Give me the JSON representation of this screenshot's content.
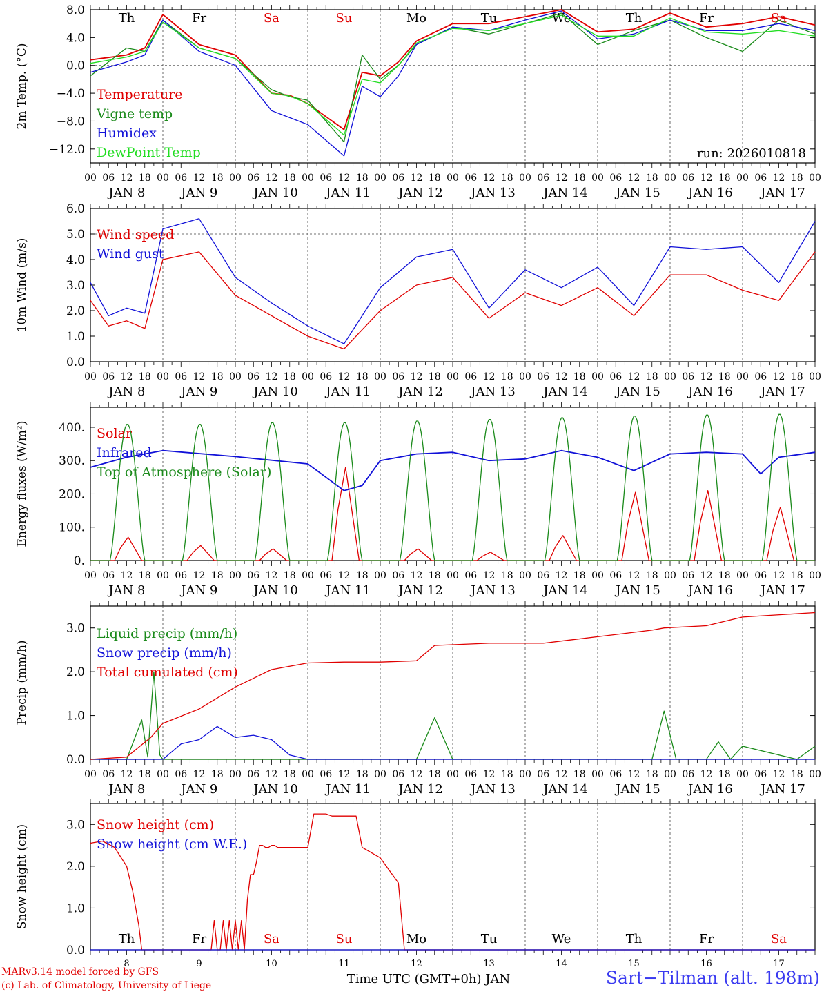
{
  "run_label": "run: 2026010818",
  "station": "Sart−Tilman (alt. 198m)",
  "credits": [
    "MARv3.14 model forced by GFS",
    "(c) Lab. of Climatology, University of Liege"
  ],
  "colors": {
    "red": "#e00000",
    "green": "#1a8a1a",
    "blue": "#1010d8",
    "lightgreen": "#22dd22"
  },
  "time_axis": {
    "hour_ticks": [
      "00",
      "06",
      "12",
      "18"
    ],
    "date_labels": [
      "JAN  8",
      "JAN  9",
      "JAN 10",
      "JAN 11",
      "JAN 12",
      "JAN 13",
      "JAN 14",
      "JAN 15",
      "JAN 16",
      "JAN 17"
    ],
    "bottom_day_numbers": [
      "8",
      "9",
      "10",
      "11",
      "12",
      "13",
      "14",
      "15",
      "16",
      "17"
    ],
    "bottom_xlabel": "Time UTC (GMT+0h) JAN"
  },
  "weekdays": [
    {
      "label": "Th",
      "color": "#000000"
    },
    {
      "label": "Fr",
      "color": "#000000"
    },
    {
      "label": "Sa",
      "color": "#e00000"
    },
    {
      "label": "Su",
      "color": "#e00000"
    },
    {
      "label": "Mo",
      "color": "#000000"
    },
    {
      "label": "Tu",
      "color": "#000000"
    },
    {
      "label": "We",
      "color": "#000000"
    },
    {
      "label": "Th",
      "color": "#000000"
    },
    {
      "label": "Fr",
      "color": "#000000"
    },
    {
      "label": "Sa",
      "color": "#e00000"
    }
  ],
  "chart_data": [
    {
      "type": "line",
      "id": "temp",
      "ylabel": "2m Temp. (°C)",
      "ylim": [
        -14,
        8
      ],
      "yticks": [
        8,
        4,
        0,
        -4,
        -8,
        -12
      ],
      "ytick_labels": [
        "8.0",
        "4.0",
        "0.0",
        "−4.0",
        "−8.0",
        "−12.0"
      ],
      "hline": 0,
      "show_weekdays": true,
      "x_hours": [
        0,
        12,
        18,
        24,
        36,
        48,
        60,
        66,
        72,
        84,
        90,
        96,
        102,
        108,
        120,
        132,
        144,
        156,
        168,
        180,
        192,
        204,
        216,
        228,
        240
      ],
      "series": [
        {
          "name": "Temperature",
          "color": "#e00000",
          "values": [
            0.8,
            1.5,
            2.5,
            7.3,
            3.0,
            1.5,
            -4.0,
            -4.3,
            -5.5,
            -9.2,
            -1.0,
            -1.5,
            0.5,
            3.5,
            6.0,
            6.0,
            7.0,
            8.0,
            4.8,
            5.2,
            7.5,
            5.5,
            6.0,
            7.0,
            5.8
          ]
        },
        {
          "name": "Vigne temp",
          "color": "#1a8a1a",
          "values": [
            -1.5,
            2.5,
            2.0,
            6.5,
            2.5,
            1.0,
            -3.5,
            -4.5,
            -5.0,
            -11.0,
            1.5,
            -2.0,
            0.0,
            3.0,
            5.5,
            4.5,
            6.0,
            7.5,
            3.0,
            5.0,
            6.5,
            4.0,
            2.0,
            6.5,
            4.5
          ]
        },
        {
          "name": "Humidex",
          "color": "#1010d8",
          "values": [
            -1.0,
            0.5,
            1.5,
            6.5,
            2.0,
            0.0,
            -6.5,
            -7.5,
            -8.5,
            -13.0,
            -3.0,
            -4.5,
            -1.5,
            3.0,
            5.5,
            5.0,
            6.5,
            7.8,
            3.8,
            4.5,
            6.5,
            5.0,
            5.0,
            6.0,
            5.0
          ]
        },
        {
          "name": "DewPoint Temp",
          "color": "#22dd22",
          "values": [
            0.3,
            1.2,
            2.0,
            6.2,
            2.5,
            1.0,
            -4.0,
            -4.4,
            -5.5,
            -10.0,
            -2.0,
            -2.5,
            0.0,
            3.2,
            5.3,
            5.0,
            6.0,
            7.2,
            4.2,
            4.2,
            6.8,
            4.8,
            4.5,
            5.0,
            4.2
          ]
        }
      ]
    },
    {
      "type": "line",
      "id": "wind",
      "ylabel": "10m Wind (m/s)",
      "ylim": [
        0,
        6
      ],
      "yticks": [
        6,
        5,
        4,
        3,
        2,
        1,
        0
      ],
      "ytick_labels": [
        "6.0",
        "5.0",
        "4.0",
        "3.0",
        "2.0",
        "1.0",
        "0.0"
      ],
      "hline": 5,
      "show_weekdays": false,
      "x_hours": [
        0,
        6,
        12,
        18,
        24,
        36,
        48,
        60,
        72,
        84,
        96,
        108,
        120,
        132,
        144,
        156,
        168,
        180,
        192,
        204,
        216,
        228,
        240
      ],
      "series": [
        {
          "name": "Wind speed",
          "color": "#e00000",
          "values": [
            2.4,
            1.4,
            1.6,
            1.3,
            4.0,
            4.3,
            2.6,
            1.8,
            1.0,
            0.5,
            2.0,
            3.0,
            3.3,
            1.7,
            2.7,
            2.2,
            2.9,
            1.8,
            3.4,
            3.4,
            2.8,
            2.4,
            4.3
          ]
        },
        {
          "name": "Wind gust",
          "color": "#1010d8",
          "values": [
            3.1,
            1.8,
            2.1,
            1.9,
            5.2,
            5.6,
            3.3,
            2.3,
            1.4,
            0.7,
            2.9,
            4.1,
            4.4,
            2.1,
            3.6,
            2.9,
            3.7,
            2.2,
            4.5,
            4.4,
            4.5,
            3.1,
            5.5
          ]
        }
      ]
    },
    {
      "type": "line",
      "id": "flux",
      "ylabel": "Energy fluxes (W/m²)",
      "ylim": [
        0,
        460
      ],
      "yticks": [
        400,
        300,
        200,
        100,
        0
      ],
      "ytick_labels": [
        "400.",
        "300.",
        "200.",
        "100.",
        "0."
      ],
      "show_weekdays": false,
      "series": [
        {
          "name": "Solar",
          "color": "#e00000",
          "daily_peaks": [
            70,
            45,
            35,
            280,
            35,
            25,
            75,
            205,
            210,
            160
          ]
        },
        {
          "name": "Infrared",
          "color": "#1010d8",
          "x_hours": [
            0,
            12,
            24,
            48,
            72,
            78,
            84,
            90,
            96,
            108,
            120,
            132,
            144,
            156,
            168,
            180,
            192,
            204,
            216,
            222,
            228,
            240
          ],
          "values": [
            280,
            310,
            330,
            312,
            290,
            250,
            210,
            225,
            300,
            320,
            325,
            300,
            305,
            330,
            310,
            270,
            320,
            325,
            320,
            260,
            310,
            325
          ]
        },
        {
          "name": "Top of Atmosphere (Solar)",
          "color": "#1a8a1a",
          "daily_peaks": [
            410,
            410,
            415,
            415,
            420,
            425,
            430,
            435,
            438,
            440
          ]
        }
      ]
    },
    {
      "type": "line",
      "id": "precip",
      "ylabel": "Precip (mm/h)",
      "ylim": [
        0,
        3.5
      ],
      "yticks": [
        3,
        2,
        1,
        0
      ],
      "ytick_labels": [
        "3.0",
        "2.0",
        "1.0",
        "0.0"
      ],
      "show_weekdays": false,
      "series": [
        {
          "name": "Liquid precip (mm/h)",
          "color": "#1a8a1a",
          "x_hours": [
            0,
            12,
            17,
            19,
            21,
            23,
            24,
            108,
            114,
            120,
            186,
            190,
            194,
            204,
            208,
            212,
            216,
            234,
            240
          ],
          "values": [
            0,
            0,
            0.9,
            0.05,
            2.0,
            0.1,
            0,
            0,
            0.95,
            0,
            0,
            1.1,
            0,
            0,
            0.4,
            0,
            0.3,
            0,
            0.3
          ]
        },
        {
          "name": "Snow precip (mm/h)",
          "color": "#1010d8",
          "x_hours": [
            0,
            24,
            30,
            36,
            42,
            48,
            54,
            60,
            66,
            72,
            240
          ],
          "values": [
            0,
            0,
            0.35,
            0.45,
            0.75,
            0.5,
            0.55,
            0.45,
            0.1,
            0,
            0
          ]
        },
        {
          "name": "Total cumulated (cm)",
          "color": "#e00000",
          "x_hours": [
            0,
            12,
            20,
            24,
            36,
            48,
            60,
            72,
            84,
            96,
            108,
            114,
            132,
            150,
            156,
            186,
            190,
            204,
            216,
            240
          ],
          "values": [
            0,
            0.05,
            0.5,
            0.82,
            1.15,
            1.65,
            2.05,
            2.2,
            2.22,
            2.22,
            2.25,
            2.6,
            2.65,
            2.65,
            2.7,
            2.95,
            3.0,
            3.05,
            3.25,
            3.35
          ]
        }
      ]
    },
    {
      "type": "line",
      "id": "snow",
      "ylabel": "Snow height (cm)",
      "ylim": [
        0,
        3.5
      ],
      "yticks": [
        3,
        2,
        1,
        0
      ],
      "ytick_labels": [
        "3.0",
        "2.0",
        "1.0",
        "0.0"
      ],
      "show_weekdays": true,
      "bottom_axis": true,
      "series": [
        {
          "name": "Snow height (cm)",
          "color": "#e00000",
          "x_hours": [
            0,
            4,
            8,
            12,
            14,
            16,
            17,
            40,
            41,
            42,
            43,
            44,
            45,
            46,
            47,
            48,
            49,
            50,
            51,
            52,
            53,
            54,
            55,
            56,
            57,
            58,
            59,
            60,
            61,
            62,
            63,
            64,
            66,
            68,
            72,
            74,
            78,
            80,
            84,
            88,
            90,
            96,
            102,
            104,
            240
          ],
          "values": [
            2.55,
            2.6,
            2.45,
            2.0,
            1.4,
            0.6,
            0,
            0,
            0.7,
            0,
            0,
            0.7,
            0,
            0.7,
            0,
            0.7,
            0,
            0.7,
            0,
            1.2,
            1.8,
            1.8,
            2.1,
            2.5,
            2.5,
            2.45,
            2.45,
            2.5,
            2.5,
            2.45,
            2.45,
            2.45,
            2.45,
            2.45,
            2.45,
            3.25,
            3.25,
            3.2,
            3.2,
            3.2,
            2.45,
            2.2,
            1.6,
            0,
            0
          ]
        },
        {
          "name": "Snow height (cm W.E.)",
          "color": "#1010d8",
          "x_hours": [
            0,
            240
          ],
          "values": [
            0,
            0
          ]
        }
      ]
    }
  ]
}
